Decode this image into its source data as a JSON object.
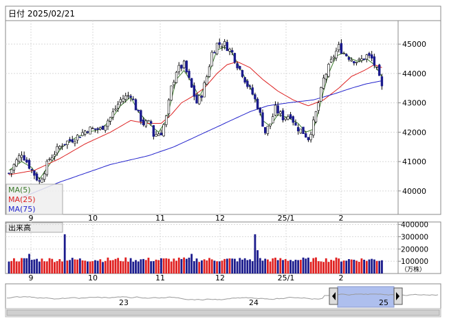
{
  "header": {
    "date_label": "日付 2025/02/21"
  },
  "chart_data": [
    {
      "type": "candlestick",
      "name": "price",
      "y_ticks": [
        45000,
        44000,
        43000,
        42000,
        41000,
        40000
      ],
      "ylim": [
        39200,
        45800
      ],
      "x_ticks": [
        "9",
        "10",
        "11",
        "12",
        "25/1",
        "2"
      ],
      "legend": {
        "position": "bottom-left",
        "items": [
          {
            "label": "MA(5)",
            "color": "#3a7a2a"
          },
          {
            "label": "MA(25)",
            "color": "#dd2222"
          },
          {
            "label": "MA(75)",
            "color": "#2222cc"
          }
        ]
      },
      "colors": {
        "up": "#ffffff",
        "down": "#1a1a8c",
        "outline": "#000000"
      },
      "anchors": [
        [
          0,
          40600
        ],
        [
          5,
          41300
        ],
        [
          9,
          40700
        ],
        [
          12,
          40300
        ],
        [
          16,
          41100
        ],
        [
          21,
          41600
        ],
        [
          26,
          41800
        ],
        [
          31,
          42100
        ],
        [
          36,
          42100
        ],
        [
          40,
          42500
        ],
        [
          44,
          43100
        ],
        [
          48,
          43300
        ],
        [
          51,
          42600
        ],
        [
          53,
          42300
        ],
        [
          56,
          42300
        ],
        [
          57,
          41900
        ],
        [
          60,
          42000
        ],
        [
          62,
          42500
        ],
        [
          64,
          43500
        ],
        [
          66,
          44100
        ],
        [
          69,
          44300
        ],
        [
          72,
          43500
        ],
        [
          74,
          43000
        ],
        [
          76,
          43300
        ],
        [
          78,
          43900
        ],
        [
          80,
          44700
        ],
        [
          82,
          45000
        ],
        [
          85,
          45000
        ],
        [
          88,
          44700
        ],
        [
          90,
          44300
        ],
        [
          92,
          44000
        ],
        [
          94,
          43600
        ],
        [
          96,
          43300
        ],
        [
          98,
          42900
        ],
        [
          100,
          42300
        ],
        [
          101,
          42000
        ],
        [
          103,
          42300
        ],
        [
          105,
          42800
        ],
        [
          108,
          42500
        ],
        [
          111,
          42600
        ],
        [
          113,
          42200
        ],
        [
          116,
          42000
        ],
        [
          118,
          41800
        ],
        [
          120,
          42300
        ],
        [
          122,
          43000
        ],
        [
          124,
          43800
        ],
        [
          126,
          44200
        ],
        [
          128,
          44600
        ],
        [
          130,
          44900
        ],
        [
          132,
          44700
        ],
        [
          135,
          44500
        ],
        [
          138,
          44400
        ],
        [
          141,
          44600
        ],
        [
          143,
          44500
        ],
        [
          145,
          44100
        ],
        [
          146,
          43800
        ],
        [
          147,
          43500
        ]
      ],
      "ma_anchors": {
        "ma5": [
          [
            0,
            40700
          ],
          [
            5,
            41000
          ],
          [
            9,
            40800
          ],
          [
            12,
            40400
          ],
          [
            16,
            40900
          ],
          [
            21,
            41500
          ],
          [
            26,
            41800
          ],
          [
            31,
            42000
          ],
          [
            36,
            42100
          ],
          [
            40,
            42400
          ],
          [
            44,
            42900
          ],
          [
            48,
            43200
          ],
          [
            51,
            42700
          ],
          [
            55,
            42300
          ],
          [
            59,
            42000
          ],
          [
            62,
            42400
          ],
          [
            64,
            43100
          ],
          [
            66,
            43800
          ],
          [
            69,
            44100
          ],
          [
            72,
            43700
          ],
          [
            75,
            43200
          ],
          [
            78,
            43700
          ],
          [
            80,
            44300
          ],
          [
            82,
            44800
          ],
          [
            85,
            44900
          ],
          [
            88,
            44700
          ],
          [
            91,
            44200
          ],
          [
            94,
            43700
          ],
          [
            97,
            43200
          ],
          [
            100,
            42400
          ],
          [
            103,
            42200
          ],
          [
            106,
            42600
          ],
          [
            110,
            42500
          ],
          [
            114,
            42300
          ],
          [
            117,
            42000
          ],
          [
            120,
            42100
          ],
          [
            122,
            42700
          ],
          [
            124,
            43400
          ],
          [
            126,
            44000
          ],
          [
            129,
            44600
          ],
          [
            132,
            44700
          ],
          [
            135,
            44500
          ],
          [
            138,
            44400
          ],
          [
            141,
            44500
          ],
          [
            144,
            44300
          ],
          [
            147,
            43900
          ]
        ],
        "ma25": [
          [
            0,
            40550
          ],
          [
            10,
            40700
          ],
          [
            20,
            41100
          ],
          [
            30,
            41600
          ],
          [
            40,
            42000
          ],
          [
            48,
            42400
          ],
          [
            54,
            42300
          ],
          [
            60,
            42300
          ],
          [
            64,
            42600
          ],
          [
            68,
            43000
          ],
          [
            72,
            43200
          ],
          [
            77,
            43500
          ],
          [
            82,
            44000
          ],
          [
            86,
            44300
          ],
          [
            90,
            44400
          ],
          [
            95,
            44200
          ],
          [
            100,
            43800
          ],
          [
            106,
            43400
          ],
          [
            112,
            43100
          ],
          [
            118,
            42900
          ],
          [
            124,
            43100
          ],
          [
            130,
            43500
          ],
          [
            135,
            43900
          ],
          [
            140,
            44100
          ],
          [
            144,
            44300
          ],
          [
            147,
            44200
          ]
        ],
        "ma75": [
          [
            0,
            39600
          ],
          [
            20,
            40300
          ],
          [
            40,
            40900
          ],
          [
            55,
            41200
          ],
          [
            65,
            41500
          ],
          [
            75,
            41900
          ],
          [
            85,
            42300
          ],
          [
            95,
            42700
          ],
          [
            102,
            42900
          ],
          [
            110,
            43000
          ],
          [
            120,
            43100
          ],
          [
            128,
            43300
          ],
          [
            135,
            43500
          ],
          [
            141,
            43650
          ],
          [
            147,
            43750
          ]
        ]
      }
    },
    {
      "type": "bar",
      "name": "volume",
      "title": "出来高",
      "y_ticks": [
        400000,
        300000,
        200000,
        100000
      ],
      "unit": "（万株）",
      "ylim": [
        0,
        420000
      ],
      "x_ticks": [
        "9",
        "10",
        "11",
        "12",
        "25/1",
        "2"
      ],
      "base_value": 110000,
      "spikes": [
        [
          8,
          160000
        ],
        [
          22,
          320000
        ],
        [
          72,
          160000
        ],
        [
          97,
          320000
        ],
        [
          98,
          190000
        ]
      ]
    },
    {
      "type": "area",
      "name": "navigator",
      "x_ticks": [
        "23",
        "24",
        "25"
      ],
      "range_color": "#aebfee"
    }
  ]
}
